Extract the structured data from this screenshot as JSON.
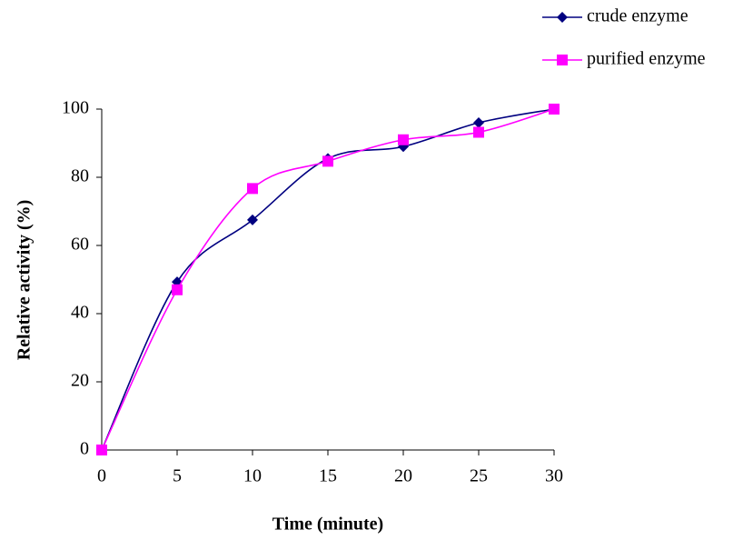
{
  "chart_data": {
    "type": "line",
    "x_label": "Time (minute)",
    "y_label": "Relative activity (%)",
    "x": [
      0,
      5,
      10,
      15,
      20,
      25,
      30
    ],
    "series": [
      {
        "name": "crude enzyme",
        "color": "#000080",
        "marker": "diamond",
        "values": [
          0,
          49.3,
          67.5,
          85.5,
          89,
          96,
          100
        ]
      },
      {
        "name": "purified enzyme",
        "color": "#ff00ff",
        "marker": "square",
        "values": [
          0,
          47,
          76.7,
          84.7,
          91,
          93.2,
          100
        ]
      }
    ],
    "xlim": [
      0,
      30
    ],
    "xticks": [
      0,
      5,
      10,
      15,
      20,
      25,
      30
    ],
    "ylim": [
      0,
      100
    ],
    "yticks": [
      0,
      20,
      40,
      60,
      80,
      100
    ],
    "grid": false,
    "smooth": true,
    "legend": "top-right"
  }
}
